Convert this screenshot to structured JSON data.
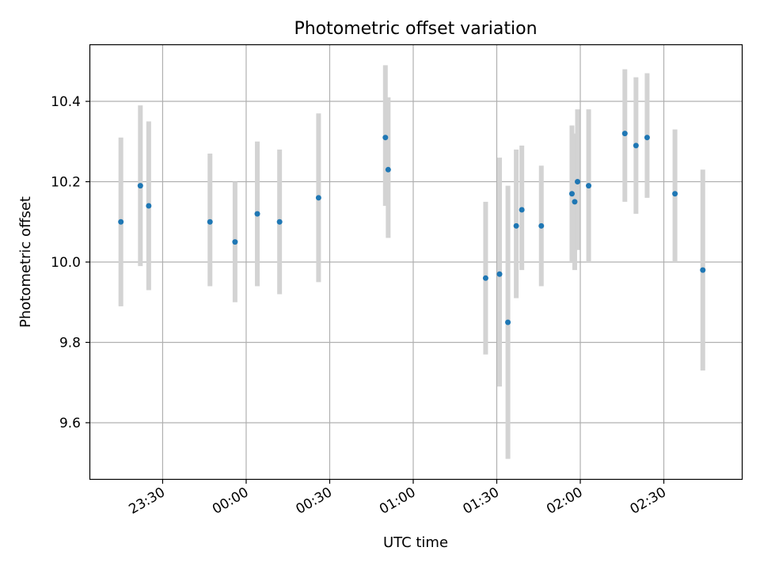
{
  "chart_data": {
    "type": "scatter",
    "title": "Photometric offset variation",
    "xlabel": "UTC time",
    "ylabel": "Photometric offset",
    "x_axis": {
      "kind": "time",
      "range": [
        "23:04",
        "02:58"
      ],
      "ticks": [
        "23:30",
        "00:00",
        "00:30",
        "01:00",
        "01:30",
        "02:00",
        "02:30"
      ]
    },
    "y_axis": {
      "range": [
        9.46,
        10.54
      ],
      "ticks": [
        9.6,
        9.8,
        10.0,
        10.2,
        10.4
      ],
      "tick_labels": [
        "9.6",
        "9.8",
        "10.0",
        "10.2",
        "10.4"
      ]
    },
    "grid": true,
    "colors": {
      "point": "#1f77b4",
      "errorbar": "#d3d3d3",
      "grid": "#b0b0b0"
    },
    "points": [
      {
        "t": "23:15",
        "y": 10.1,
        "ylo": 9.89,
        "yhi": 10.31
      },
      {
        "t": "23:22",
        "y": 10.19,
        "ylo": 9.99,
        "yhi": 10.39
      },
      {
        "t": "23:25",
        "y": 10.14,
        "ylo": 9.93,
        "yhi": 10.35
      },
      {
        "t": "23:47",
        "y": 10.1,
        "ylo": 9.94,
        "yhi": 10.27
      },
      {
        "t": "23:56",
        "y": 10.05,
        "ylo": 9.9,
        "yhi": 10.2
      },
      {
        "t": "00:04",
        "y": 10.12,
        "ylo": 9.94,
        "yhi": 10.3
      },
      {
        "t": "00:12",
        "y": 10.1,
        "ylo": 9.92,
        "yhi": 10.28
      },
      {
        "t": "00:26",
        "y": 10.16,
        "ylo": 9.95,
        "yhi": 10.37
      },
      {
        "t": "00:50",
        "y": 10.31,
        "ylo": 10.14,
        "yhi": 10.49
      },
      {
        "t": "00:51",
        "y": 10.23,
        "ylo": 10.06,
        "yhi": 10.41
      },
      {
        "t": "01:26",
        "y": 9.96,
        "ylo": 9.77,
        "yhi": 10.15
      },
      {
        "t": "01:31",
        "y": 9.97,
        "ylo": 9.69,
        "yhi": 10.26
      },
      {
        "t": "01:34",
        "y": 9.85,
        "ylo": 9.51,
        "yhi": 10.19
      },
      {
        "t": "01:37",
        "y": 10.09,
        "ylo": 9.91,
        "yhi": 10.28
      },
      {
        "t": "01:39",
        "y": 10.13,
        "ylo": 9.98,
        "yhi": 10.29
      },
      {
        "t": "01:46",
        "y": 10.09,
        "ylo": 9.94,
        "yhi": 10.24
      },
      {
        "t": "01:57",
        "y": 10.17,
        "ylo": 10.0,
        "yhi": 10.34
      },
      {
        "t": "01:58",
        "y": 10.15,
        "ylo": 9.98,
        "yhi": 10.32
      },
      {
        "t": "01:59",
        "y": 10.2,
        "ylo": 10.03,
        "yhi": 10.38
      },
      {
        "t": "02:03",
        "y": 10.19,
        "ylo": 10.0,
        "yhi": 10.38
      },
      {
        "t": "02:16",
        "y": 10.32,
        "ylo": 10.15,
        "yhi": 10.48
      },
      {
        "t": "02:20",
        "y": 10.29,
        "ylo": 10.12,
        "yhi": 10.46
      },
      {
        "t": "02:24",
        "y": 10.31,
        "ylo": 10.16,
        "yhi": 10.47
      },
      {
        "t": "02:34",
        "y": 10.17,
        "ylo": 10.0,
        "yhi": 10.33
      },
      {
        "t": "02:44",
        "y": 9.98,
        "ylo": 9.73,
        "yhi": 10.23
      }
    ]
  }
}
